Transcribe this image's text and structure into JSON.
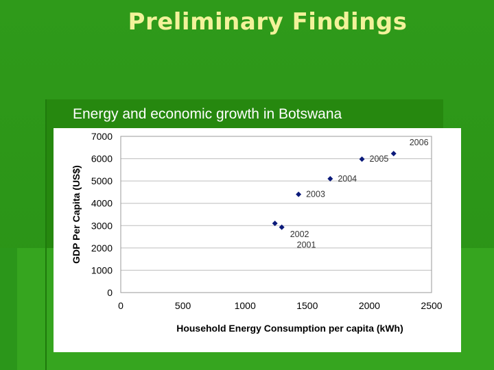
{
  "slide": {
    "title": "Preliminary Findings",
    "bullet_text": "Energy and economic growth in Botswana"
  },
  "colors": {
    "background": "#2f9a1a",
    "title": "#f2f29a",
    "marker": "#0b1a7a",
    "grid": "#bdbdbd"
  },
  "chart_data": {
    "type": "scatter",
    "title": "",
    "xlabel": "Household Energy Consumption per capita (kWh)",
    "ylabel": "GDP Per Capita (US$)",
    "xlim": [
      0,
      2500
    ],
    "ylim": [
      0,
      7000
    ],
    "xticks": [
      0,
      500,
      1000,
      1500,
      2000,
      2500
    ],
    "yticks": [
      0,
      1000,
      2000,
      3000,
      4000,
      5000,
      6000,
      7000
    ],
    "grid": true,
    "points": [
      {
        "label": "2001",
        "x": 1295,
        "y": 2930
      },
      {
        "label": "2002",
        "x": 1240,
        "y": 3100
      },
      {
        "label": "2003",
        "x": 1430,
        "y": 4400
      },
      {
        "label": "2004",
        "x": 1685,
        "y": 5100
      },
      {
        "label": "2005",
        "x": 1940,
        "y": 5980
      },
      {
        "label": "2006",
        "x": 2195,
        "y": 6230
      }
    ]
  }
}
